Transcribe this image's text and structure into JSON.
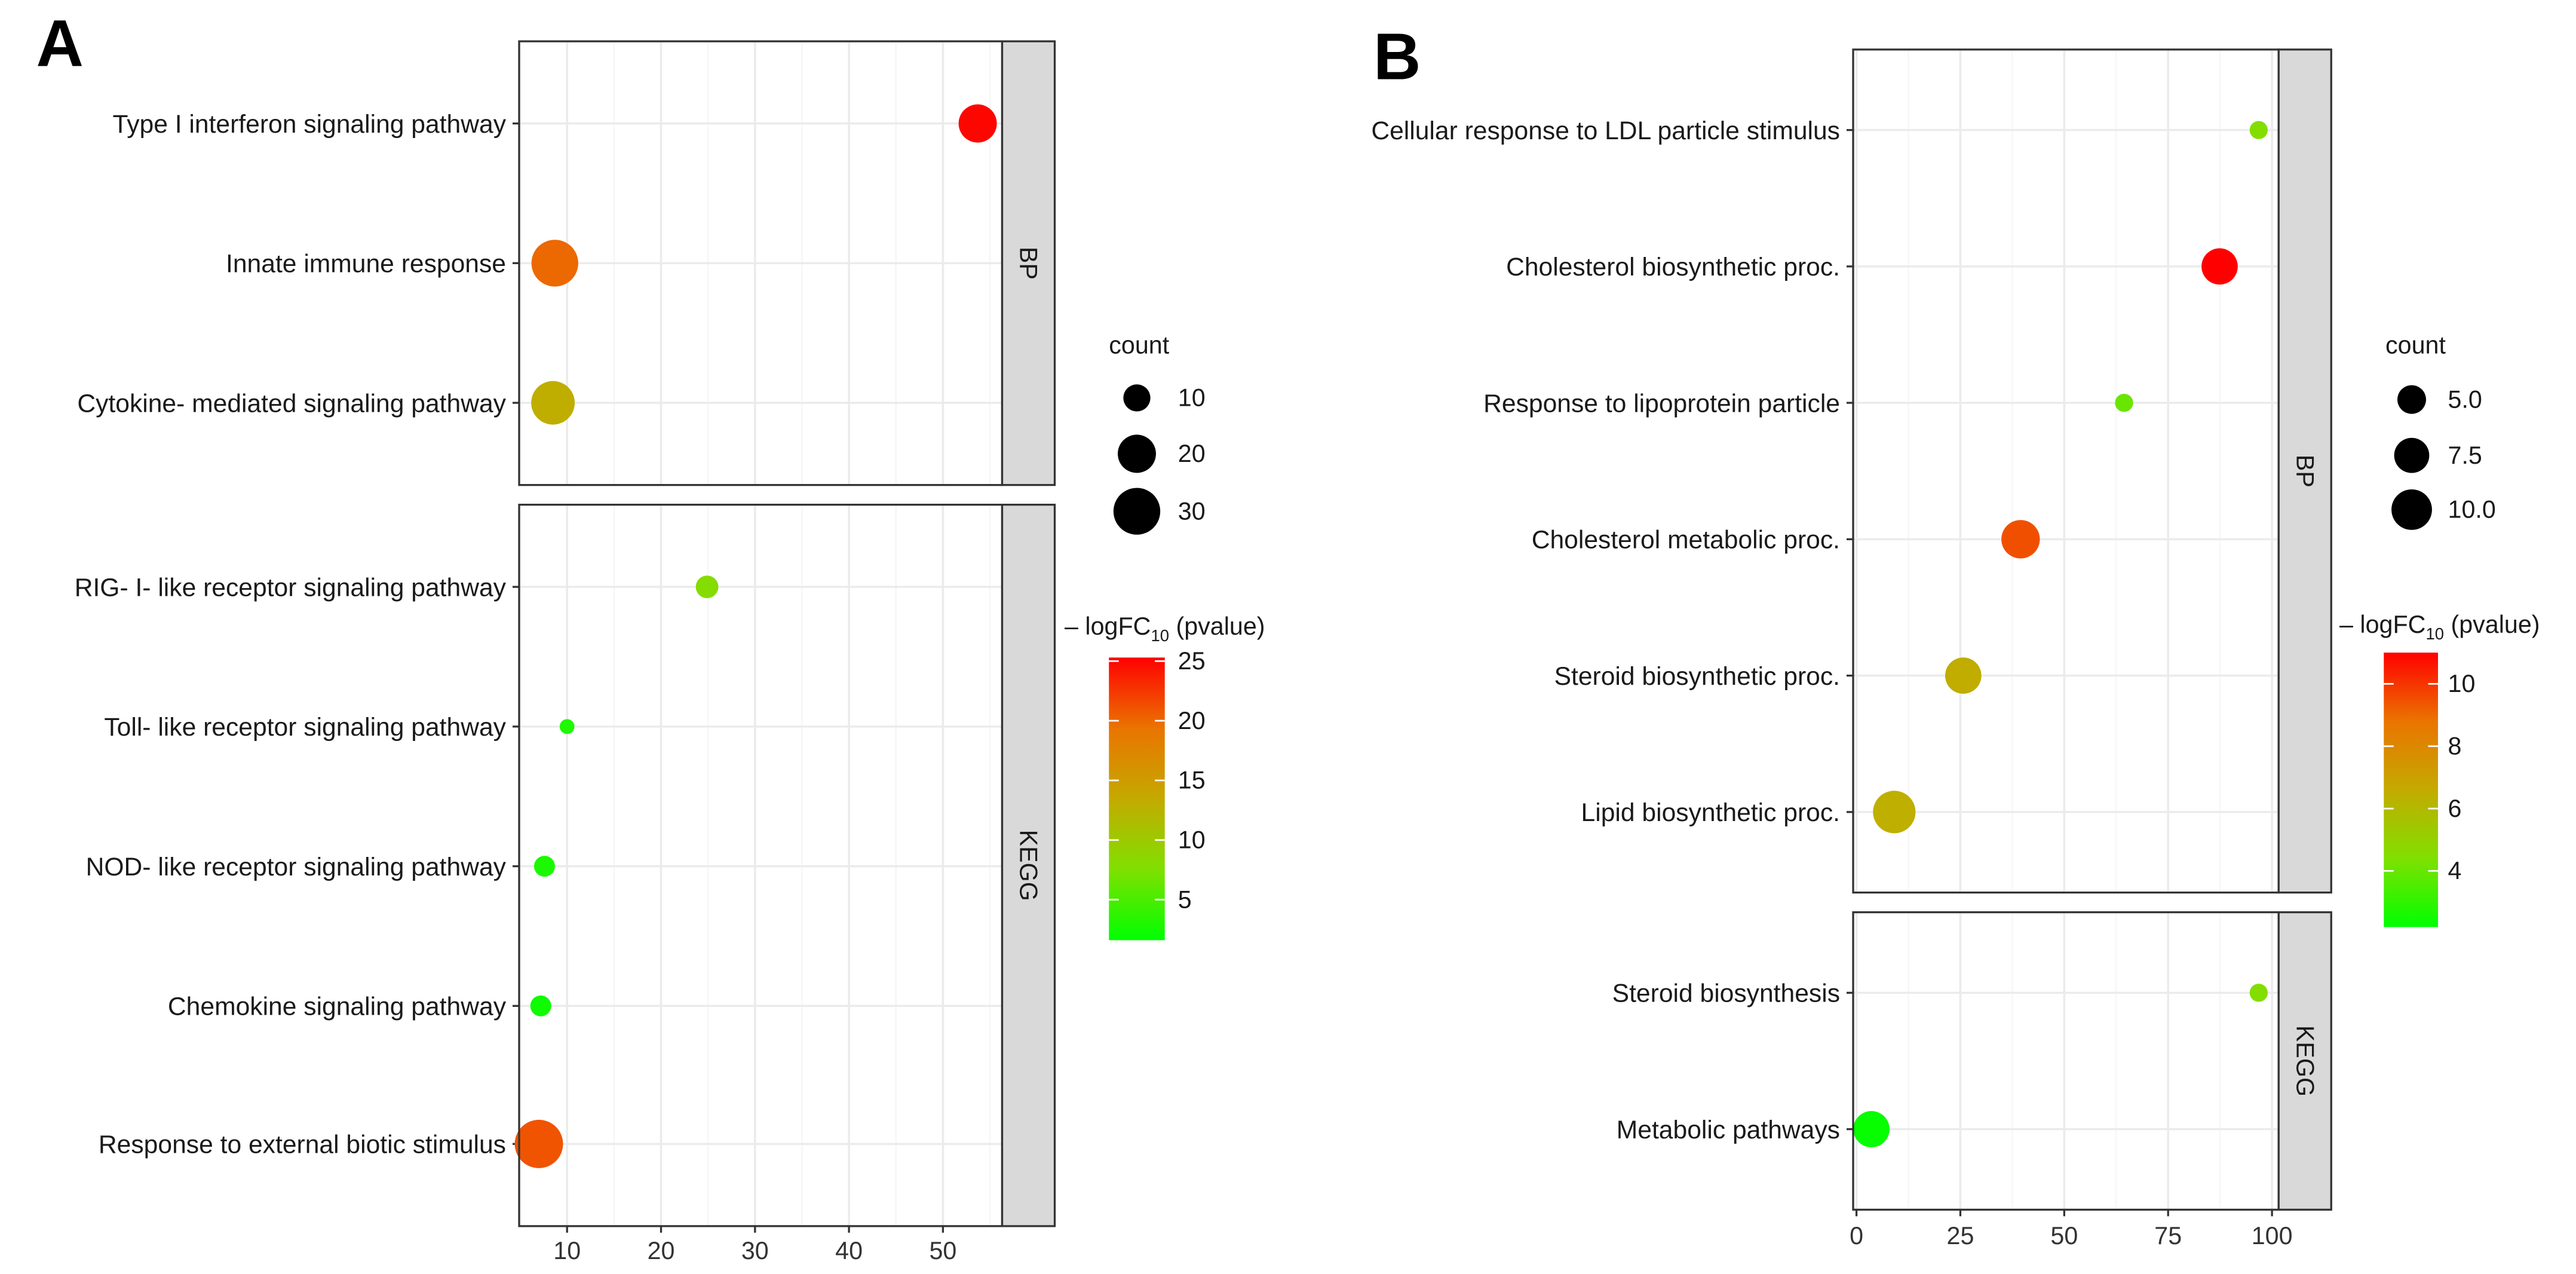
{
  "chart_data": [
    {
      "type": "scatter",
      "panel_label": "A",
      "xlim": [
        4.9,
        56.3
      ],
      "xticks": [
        "10",
        "20",
        "30",
        "40",
        "50"
      ],
      "xtick_values": [
        10,
        20,
        30,
        40,
        50
      ],
      "grid": true,
      "facets": [
        {
          "strip": "BP",
          "rows": [
            {
              "term": "Type I interferon signaling pathway",
              "x": 53.7,
              "count": 20,
              "pvalue": 25
            },
            {
              "term": "Innate immune response",
              "x": 8.7,
              "count": 30,
              "pvalue": 20
            },
            {
              "term": "Cytokine- mediated signaling pathway",
              "x": 8.5,
              "count": 26,
              "pvalue": 13
            }
          ]
        },
        {
          "strip": "KEGG",
          "rows": [
            {
              "term": "RIG- I- like receptor signaling pathway",
              "x": 24.9,
              "count": 7,
              "pvalue": 8
            },
            {
              "term": "Toll- like receptor signaling pathway",
              "x": 10.0,
              "count": 3,
              "pvalue": 3
            },
            {
              "term": "NOD- like receptor signaling pathway",
              "x": 7.6,
              "count": 6,
              "pvalue": 2.8
            },
            {
              "term": "Chemokine signaling pathway",
              "x": 7.2,
              "count": 6,
              "pvalue": 2.3
            },
            {
              "term": "Response to external biotic stimulus",
              "x": 7.0,
              "count": 32,
              "pvalue": 21
            }
          ]
        }
      ],
      "size_legend": {
        "title": "count",
        "values": [
          10,
          20,
          30
        ],
        "labels": [
          "10",
          "20",
          "30"
        ]
      },
      "color_legend": {
        "title_prefix": "– logFC",
        "title_sub": "10",
        "title_suffix": " (pvalue)",
        "range": [
          1.6,
          25.3
        ],
        "ticks": [
          5,
          10,
          15,
          20,
          25
        ],
        "tick_labels": [
          "5",
          "10",
          "15",
          "20",
          "25"
        ],
        "low": "#00FF00",
        "high": "#FF0000"
      },
      "legend_placement": "right"
    },
    {
      "type": "scatter",
      "panel_label": "B",
      "xlim": [
        -0.8,
        101.6
      ],
      "xticks": [
        "0",
        "25",
        "50",
        "75",
        "100"
      ],
      "xtick_values": [
        0,
        25,
        50,
        75,
        100
      ],
      "grid": true,
      "facets": [
        {
          "strip": "BP",
          "rows": [
            {
              "term": "Cellular response to LDL particle stimulus",
              "x": 96.8,
              "count": 2,
              "pvalue": 4.5
            },
            {
              "term": "Cholesterol biosynthetic proc.",
              "x": 87.4,
              "count": 8,
              "pvalue": 11
            },
            {
              "term": "Response to lipoprotein particle",
              "x": 64.4,
              "count": 2,
              "pvalue": 4
            },
            {
              "term": "Cholesterol metabolic proc.",
              "x": 39.5,
              "count": 9,
              "pvalue": 9.5
            },
            {
              "term": "Steroid biosynthetic proc.",
              "x": 25.7,
              "count": 8,
              "pvalue": 6.5
            },
            {
              "term": "Lipid biosynthetic proc.",
              "x": 9.1,
              "count": 11,
              "pvalue": 6.4
            }
          ]
        },
        {
          "strip": "KEGG",
          "rows": [
            {
              "term": "Steroid biosynthesis",
              "x": 96.8,
              "count": 2,
              "pvalue": 4.5
            },
            {
              "term": "Metabolic pathways",
              "x": 3.6,
              "count": 8,
              "pvalue": 2.3
            }
          ]
        }
      ],
      "size_legend": {
        "title": "count",
        "values": [
          5,
          7.5,
          10
        ],
        "labels": [
          "5.0",
          "7.5",
          "10.0"
        ]
      },
      "color_legend": {
        "title_prefix": "– logFC",
        "title_sub": "10",
        "title_suffix": " (pvalue)",
        "range": [
          2.2,
          11.0
        ],
        "ticks": [
          4,
          6,
          8,
          10
        ],
        "tick_labels": [
          "4",
          "6",
          "8",
          "10"
        ],
        "low": "#00FF00",
        "high": "#FF0000"
      },
      "legend_placement": "right"
    }
  ]
}
